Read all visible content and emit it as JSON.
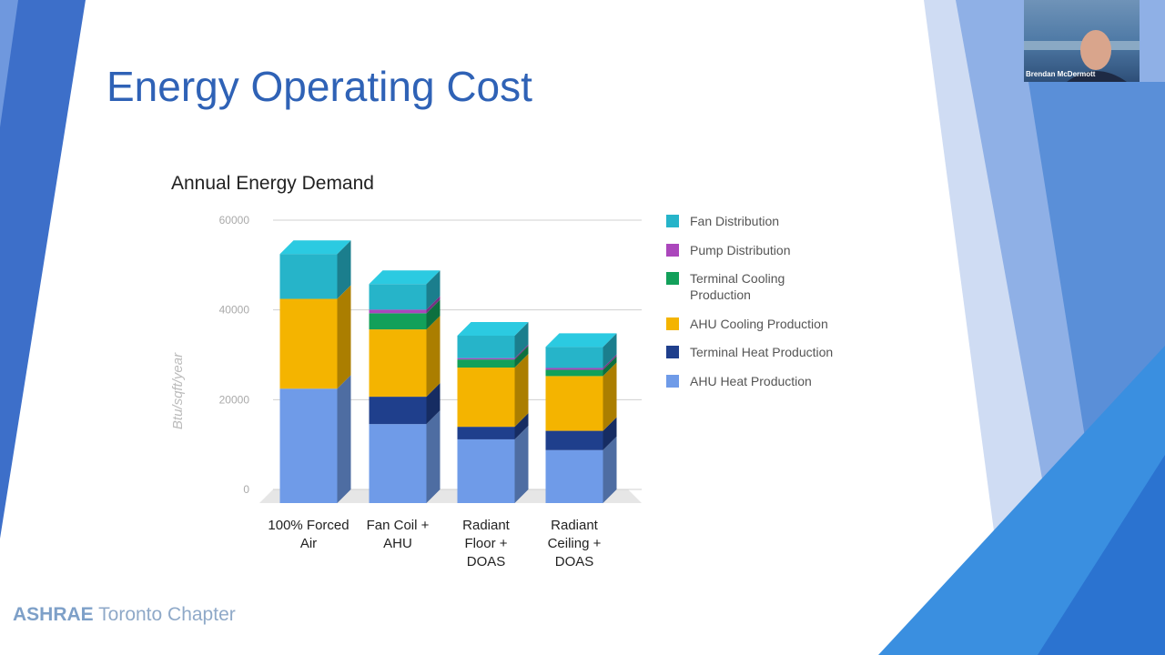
{
  "slide": {
    "title": "Energy Operating Cost",
    "logo": {
      "org": "ASHRAE",
      "chapter": "Toronto Chapter"
    }
  },
  "video": {
    "name": "Brendan McDermott"
  },
  "chart_data": {
    "type": "bar",
    "stacked": true,
    "three_d": true,
    "title": "Annual Energy Demand",
    "y_label": "Btu/sqft/year",
    "categories": [
      "100% Forced Air",
      "Fan Coil + AHU",
      "Radiant Floor + DOAS",
      "Radiant Ceiling + DOAS"
    ],
    "series": [
      {
        "name": "AHU Heat Production",
        "color": "#6f9be8",
        "values": [
          25500,
          17600,
          14200,
          11800
        ]
      },
      {
        "name": "Terminal Heat Production",
        "color": "#1f3f8c",
        "values": [
          0,
          6100,
          2800,
          4300
        ]
      },
      {
        "name": "AHU Cooling Production",
        "color": "#f4b400",
        "values": [
          20000,
          15000,
          13200,
          12200
        ]
      },
      {
        "name": "Terminal Cooling Production",
        "color": "#12a05a",
        "values": [
          0,
          3600,
          1800,
          1400
        ]
      },
      {
        "name": "Pump Distribution",
        "color": "#ab47bc",
        "values": [
          0,
          800,
          300,
          400
        ]
      },
      {
        "name": "Fan Distribution",
        "color": "#26b4c9",
        "values": [
          10000,
          5700,
          5000,
          4700
        ]
      }
    ],
    "ylim": [
      0,
      60000
    ],
    "yticks": [
      0,
      20000,
      40000,
      60000
    ],
    "grid": true,
    "legend": "right"
  }
}
